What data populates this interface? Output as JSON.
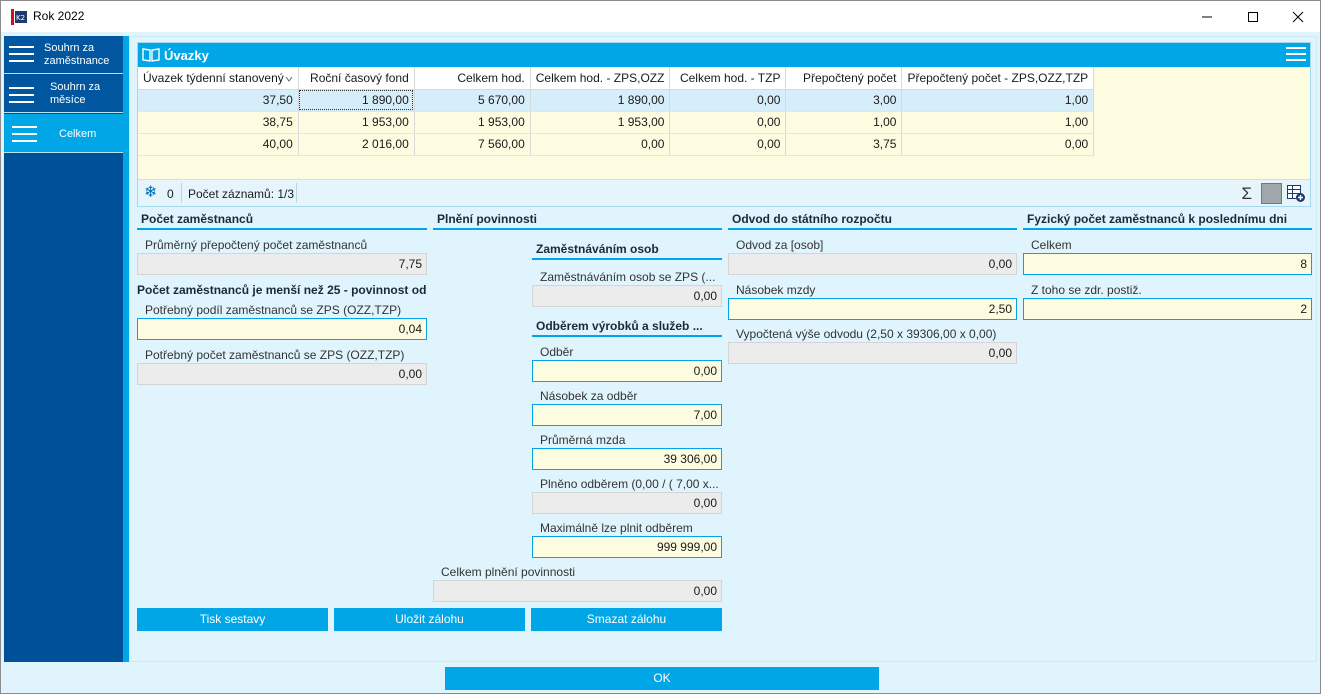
{
  "window": {
    "title": "Rok 2022"
  },
  "sidebar": {
    "items": [
      {
        "label": "Souhrn za zaměstnance"
      },
      {
        "label": "Souhrn za měsíce"
      },
      {
        "label": "Celkem"
      }
    ]
  },
  "grid": {
    "title": "Úvazky",
    "columns": [
      "Úvazek týdenní stanovený",
      "Roční časový fond",
      "Celkem hod.",
      "Celkem hod. - ZPS,OZZ",
      "Celkem hod. - TZP",
      "Přepočtený počet",
      "Přepočtený počet - ZPS,OZZ,TZP"
    ],
    "rows": [
      [
        "37,50",
        "1 890,00",
        "5 670,00",
        "1 890,00",
        "0,00",
        "3,00",
        "1,00"
      ],
      [
        "38,75",
        "1 953,00",
        "1 953,00",
        "1 953,00",
        "0,00",
        "1,00",
        "1,00"
      ],
      [
        "40,00",
        "2 016,00",
        "7 560,00",
        "0,00",
        "0,00",
        "3,75",
        "0,00"
      ]
    ],
    "status": {
      "count": "0",
      "records": "Počet záznamů: 1/3"
    }
  },
  "pocet": {
    "title": "Počet zaměstnanců",
    "avg_label": "Průměrný přepočtený počet zaměstnanců",
    "avg_value": "7,75",
    "note": "Počet zaměstnanců je menší než 25 - povinnost od...",
    "podil_label": "Potřebný podíl zaměstnanců se ZPS (OZZ,TZP)",
    "podil_value": "0,04",
    "potrebny_label": "Potřebný počet zaměstnanců se ZPS (OZZ,TZP)",
    "potrebny_value": "0,00"
  },
  "plneni": {
    "title": "Plnění povinnosti",
    "zam_title": "Zaměstnáváním osob",
    "zam_label": "Zaměstnáváním osob se ZPS (...",
    "zam_value": "0,00",
    "odber_title": "Odběrem výrobků a služeb ...",
    "odber_label": "Odběr",
    "odber_value": "0,00",
    "nasobek_label": "Násobek za odběr",
    "nasobek_value": "7,00",
    "mzda_label": "Průměrná mzda",
    "mzda_value": "39 306,00",
    "plneno_label": "Plněno odběrem (0,00 / ( 7,00 x...",
    "plneno_value": "0,00",
    "max_label": "Maximálně lze plnit odběrem",
    "max_value": "999 999,00",
    "celkem_label": "Celkem plnění povinnosti",
    "celkem_value": "0,00"
  },
  "odvod": {
    "title": "Odvod do státního rozpočtu",
    "za_label": "Odvod za [osob]",
    "za_value": "0,00",
    "nasobek_label": "Násobek mzdy",
    "nasobek_value": "2,50",
    "vypoctena_label": "Vypočtená výše odvodu (2,50 x 39306,00 x 0,00)",
    "vypoctena_value": "0,00"
  },
  "fyzicky": {
    "title": "Fyzický počet zaměstnanců k poslednímu dni",
    "celkem_label": "Celkem",
    "celkem_value": "8",
    "ztoho_label": "Z toho se zdr. postiž.",
    "ztoho_value": "2"
  },
  "buttons": {
    "tisk": "Tisk sestavy",
    "ulozit": "Uložit zálohu",
    "smazat": "Smazat zálohu",
    "ok": "OK"
  }
}
